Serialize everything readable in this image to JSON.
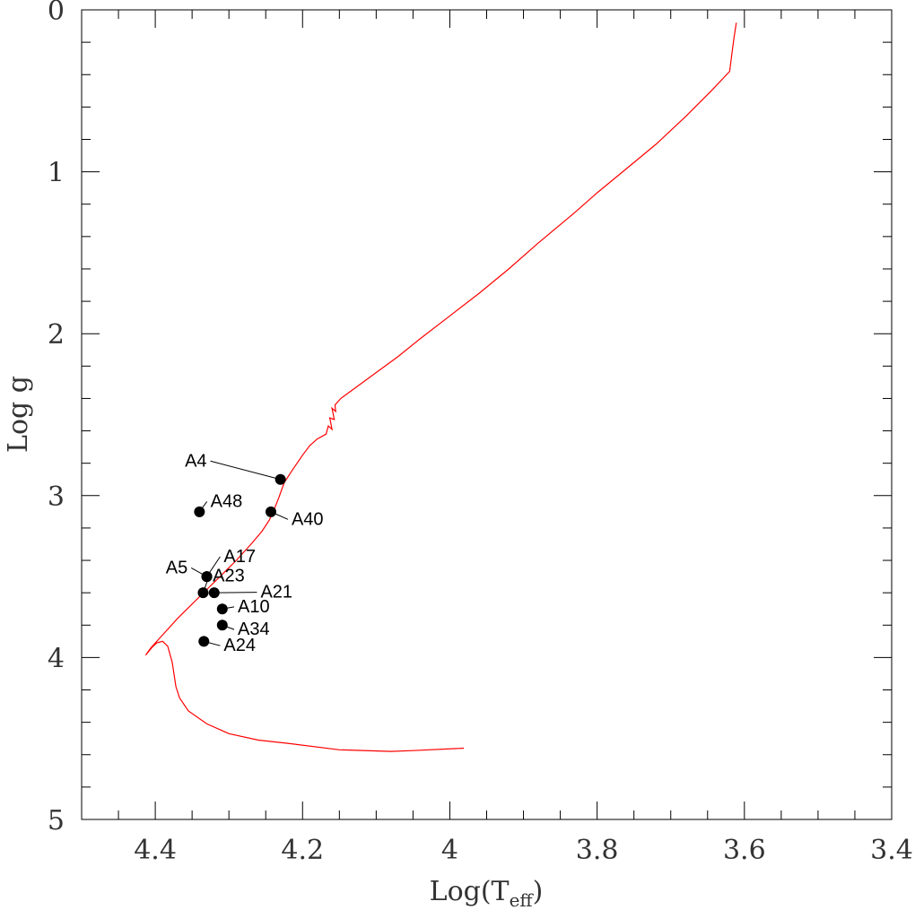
{
  "chart_data": {
    "type": "scatter",
    "xlabel": "Log(T",
    "xlabel_sub": "eff",
    "xlabel_close": ")",
    "ylabel": "Log g",
    "xlim": [
      4.5,
      3.4
    ],
    "ylim": [
      0,
      5
    ],
    "x_ticks": [
      {
        "v": 4.4,
        "label": "4.4"
      },
      {
        "v": 4.2,
        "label": "4.2"
      },
      {
        "v": 4.0,
        "label": "4"
      },
      {
        "v": 3.8,
        "label": "3.8"
      },
      {
        "v": 3.6,
        "label": "3.6"
      },
      {
        "v": 3.4,
        "label": "3.4"
      }
    ],
    "y_ticks": [
      {
        "v": 0,
        "label": "0"
      },
      {
        "v": 1,
        "label": "1"
      },
      {
        "v": 2,
        "label": "2"
      },
      {
        "v": 3,
        "label": "3"
      },
      {
        "v": 4,
        "label": "4"
      },
      {
        "v": 5,
        "label": "5"
      }
    ],
    "track_color": "#ff0000",
    "point_color": "#000000",
    "track": [
      [
        3.981,
        4.56
      ],
      [
        4.05,
        4.575
      ],
      [
        4.08,
        4.58
      ],
      [
        4.15,
        4.57
      ],
      [
        4.22,
        4.53
      ],
      [
        4.26,
        4.51
      ],
      [
        4.3,
        4.47
      ],
      [
        4.33,
        4.41
      ],
      [
        4.355,
        4.33
      ],
      [
        4.367,
        4.25
      ],
      [
        4.372,
        4.18
      ],
      [
        4.377,
        4.03
      ],
      [
        4.383,
        3.93
      ],
      [
        4.39,
        3.9
      ],
      [
        4.398,
        3.91
      ],
      [
        4.405,
        3.94
      ],
      [
        4.413,
        3.985
      ],
      [
        4.406,
        3.94
      ],
      [
        4.39,
        3.86
      ],
      [
        4.37,
        3.76
      ],
      [
        4.35,
        3.67
      ],
      [
        4.33,
        3.58
      ],
      [
        4.31,
        3.49
      ],
      [
        4.29,
        3.4
      ],
      [
        4.27,
        3.3
      ],
      [
        4.255,
        3.22
      ],
      [
        4.245,
        3.15
      ],
      [
        4.238,
        3.08
      ],
      [
        4.232,
        3.01
      ],
      [
        4.225,
        2.92
      ],
      [
        4.215,
        2.85
      ],
      [
        4.2,
        2.75
      ],
      [
        4.19,
        2.69
      ],
      [
        4.18,
        2.65
      ],
      [
        4.168,
        2.62
      ],
      [
        4.165,
        2.57
      ],
      [
        4.16,
        2.59
      ],
      [
        4.163,
        2.52
      ],
      [
        4.157,
        2.53
      ],
      [
        4.16,
        2.46
      ],
      [
        4.155,
        2.48
      ],
      [
        4.156,
        2.44
      ],
      [
        4.148,
        2.4
      ],
      [
        4.13,
        2.34
      ],
      [
        4.1,
        2.24
      ],
      [
        4.07,
        2.14
      ],
      [
        4.04,
        2.03
      ],
      [
        4.0,
        1.89
      ],
      [
        3.96,
        1.75
      ],
      [
        3.92,
        1.6
      ],
      [
        3.88,
        1.44
      ],
      [
        3.83,
        1.25
      ],
      [
        3.8,
        1.13
      ],
      [
        3.76,
        0.98
      ],
      [
        3.72,
        0.83
      ],
      [
        3.68,
        0.66
      ],
      [
        3.645,
        0.5
      ],
      [
        3.62,
        0.38
      ],
      [
        3.617,
        0.27
      ],
      [
        3.614,
        0.17
      ],
      [
        3.611,
        0.08
      ]
    ],
    "points": [
      {
        "name": "A4",
        "x": 4.23,
        "y": 2.9,
        "label_x": 4.33,
        "label_y": 2.82,
        "anchor": "end"
      },
      {
        "name": "A48",
        "x": 4.34,
        "y": 3.1,
        "label_x": 4.325,
        "label_y": 3.07,
        "anchor": "start"
      },
      {
        "name": "A40",
        "x": 4.243,
        "y": 3.1,
        "label_x": 4.215,
        "label_y": 3.18,
        "anchor": "start"
      },
      {
        "name": "A17",
        "x": 4.33,
        "y": 3.5,
        "label_x": 4.307,
        "label_y": 3.41,
        "anchor": "start"
      },
      {
        "name": "A5",
        "x": 4.33,
        "y": 3.5,
        "label_x": 4.356,
        "label_y": 3.48,
        "anchor": "end"
      },
      {
        "name": "A23",
        "x": 4.335,
        "y": 3.6,
        "label_x": 4.322,
        "label_y": 3.53,
        "anchor": "start"
      },
      {
        "name": "A21",
        "x": 4.32,
        "y": 3.6,
        "label_x": 4.257,
        "label_y": 3.63,
        "anchor": "start"
      },
      {
        "name": "A10",
        "x": 4.309,
        "y": 3.7,
        "label_x": 4.288,
        "label_y": 3.72,
        "anchor": "start"
      },
      {
        "name": "A34",
        "x": 4.309,
        "y": 3.8,
        "label_x": 4.288,
        "label_y": 3.86,
        "anchor": "start"
      },
      {
        "name": "A24",
        "x": 4.334,
        "y": 3.9,
        "label_x": 4.307,
        "label_y": 3.96,
        "anchor": "start"
      }
    ]
  }
}
